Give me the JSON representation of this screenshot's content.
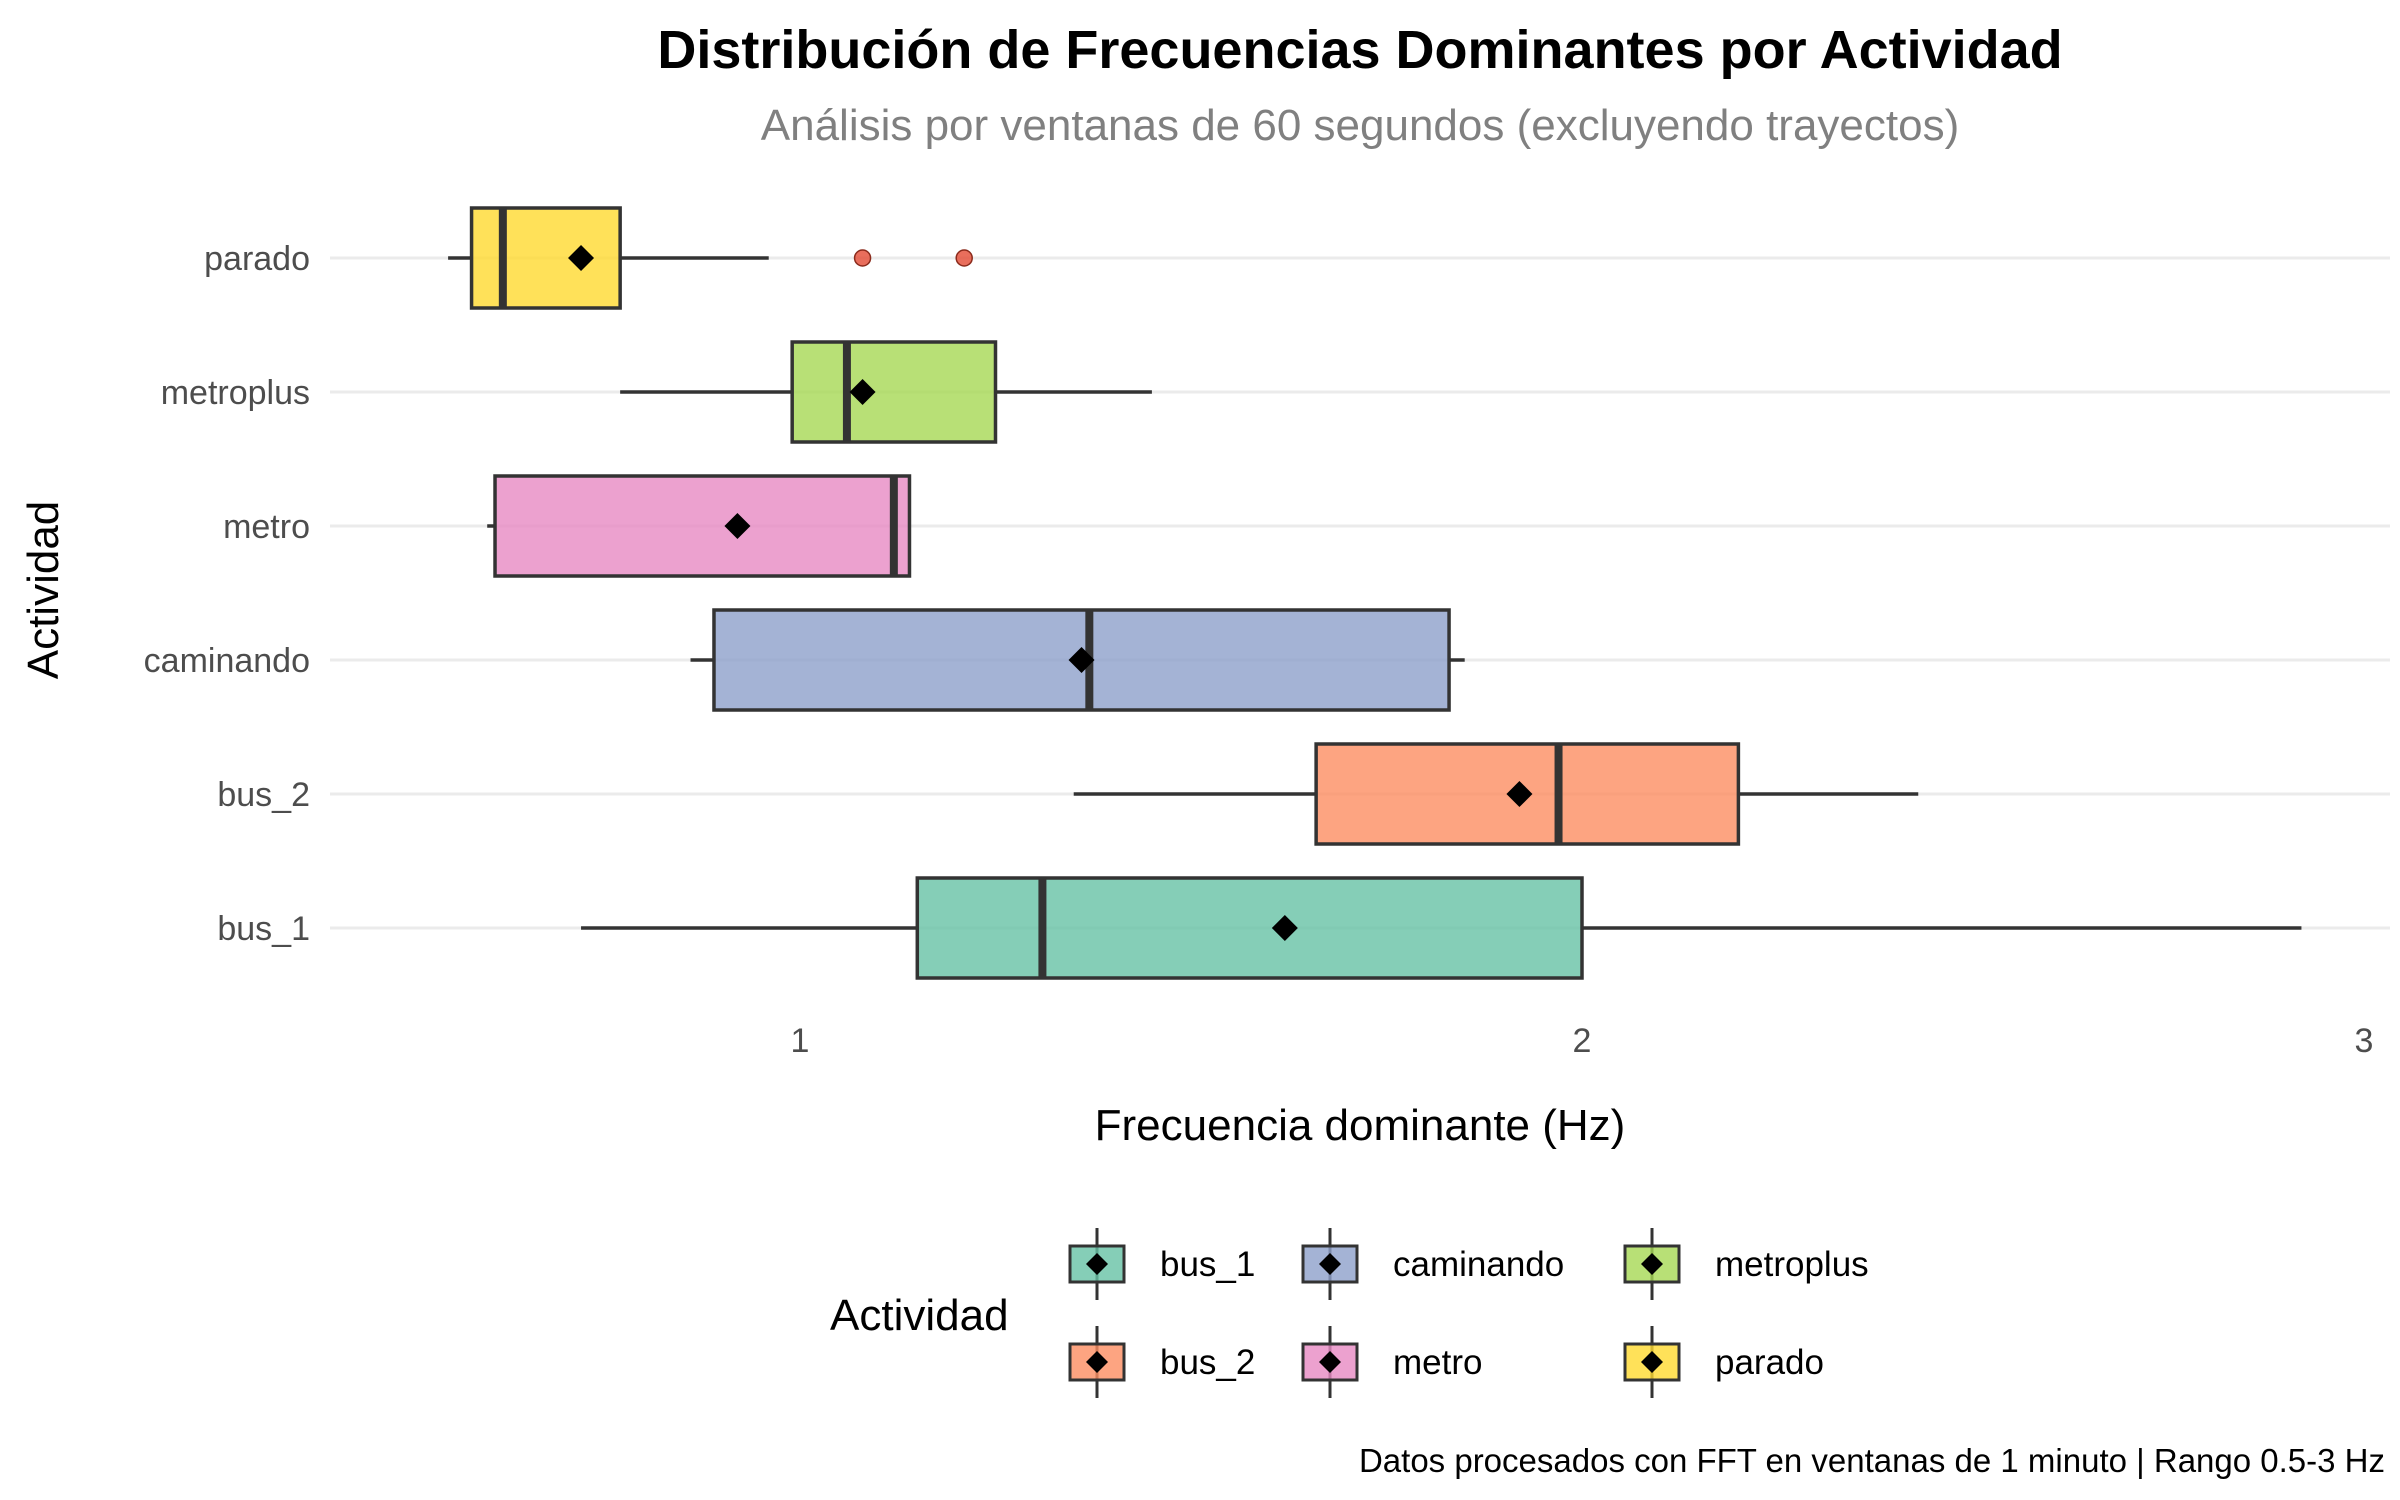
{
  "chart_data": {
    "type": "boxplot",
    "orientation": "horizontal",
    "title": "Distribución de Frecuencias Dominantes por Actividad",
    "subtitle": "Análisis por ventanas de 60 segundos (excluyendo trayectos)",
    "xlabel": "Frecuencia dominante (Hz)",
    "ylabel": "Actividad",
    "xlim": [
      0.4,
      3.0
    ],
    "x_ticks": [
      "1",
      "2",
      "3"
    ],
    "x_tick_values": [
      1,
      2,
      3
    ],
    "grid": "horizontal major lines",
    "legend": {
      "title": "Actividad",
      "placement": "bottom"
    },
    "caption": "Datos procesados con FFT en ventanas de 1 minuto | Rango 0.5-3 Hz",
    "series": [
      {
        "name": "bus_1",
        "color": "#66c2a5",
        "whisker_low": 0.72,
        "q1": 1.15,
        "median": 1.31,
        "q3": 2.0,
        "whisker_high": 2.92,
        "mean": 1.62,
        "outliers": []
      },
      {
        "name": "bus_2",
        "color": "#fc8d62",
        "whisker_low": 1.35,
        "q1": 1.66,
        "median": 1.97,
        "q3": 2.2,
        "whisker_high": 2.43,
        "mean": 1.92,
        "outliers": []
      },
      {
        "name": "caminando",
        "color": "#8da0cb",
        "whisker_low": 0.86,
        "q1": 0.89,
        "median": 1.37,
        "q3": 1.83,
        "whisker_high": 1.85,
        "mean": 1.36,
        "outliers": []
      },
      {
        "name": "metro",
        "color": "#e78ac3",
        "whisker_low": 0.6,
        "q1": 0.61,
        "median": 1.12,
        "q3": 1.14,
        "whisker_high": 1.14,
        "mean": 0.92,
        "outliers": []
      },
      {
        "name": "metroplus",
        "color": "#a6d854",
        "whisker_low": 0.77,
        "q1": 0.99,
        "median": 1.06,
        "q3": 1.25,
        "whisker_high": 1.45,
        "mean": 1.08,
        "outliers": []
      },
      {
        "name": "parado",
        "color": "#ffd92f",
        "whisker_low": 0.55,
        "q1": 0.58,
        "median": 0.62,
        "q3": 0.77,
        "whisker_high": 0.96,
        "mean": 0.72,
        "outliers": [
          1.08,
          1.21
        ]
      }
    ],
    "outlier_color": "#e34a33",
    "mean_marker": "black-diamond"
  }
}
